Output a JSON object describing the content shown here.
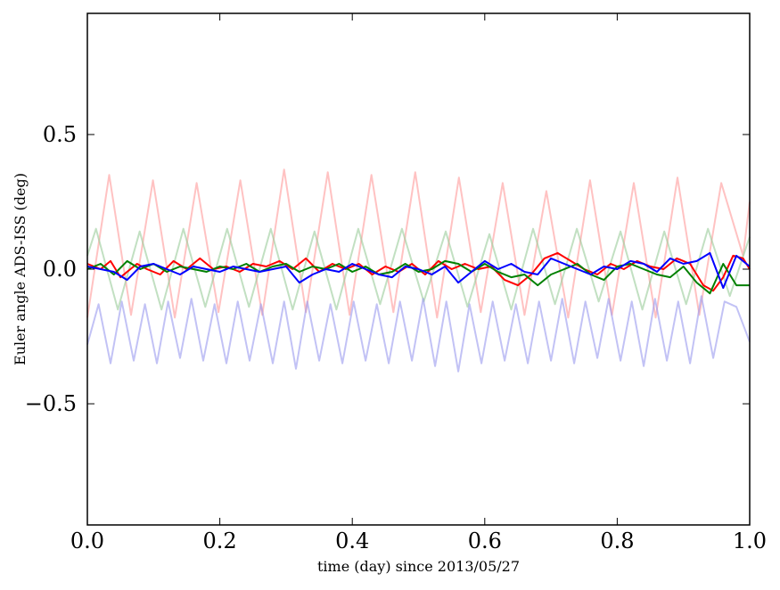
{
  "chart_data": {
    "type": "line",
    "title": "",
    "xlabel": "time (day) since 2013/05/27",
    "ylabel": "Euler angle ADS-ISS (deg)",
    "xlim": [
      0.0,
      1.0
    ],
    "ylim": [
      -0.95,
      0.95
    ],
    "xticks": [
      0.0,
      0.2,
      0.4,
      0.6,
      0.8,
      1.0
    ],
    "xtick_labels": [
      "0.0",
      "0.2",
      "0.4",
      "0.6",
      "0.8",
      "1.0"
    ],
    "yticks": [
      -0.5,
      0.0,
      0.5
    ],
    "ytick_labels": [
      "−0.5",
      "0.0",
      "0.5"
    ],
    "grid": false,
    "legend": "none",
    "series": [
      {
        "color": "#ff9999",
        "opacity": 0.6,
        "x": [
          0.0,
          0.033,
          0.066,
          0.099,
          0.132,
          0.165,
          0.198,
          0.231,
          0.264,
          0.297,
          0.33,
          0.363,
          0.396,
          0.429,
          0.462,
          0.495,
          0.528,
          0.561,
          0.594,
          0.627,
          0.66,
          0.693,
          0.726,
          0.759,
          0.792,
          0.825,
          0.858,
          0.891,
          0.924,
          0.957,
          0.99,
          1.0
        ],
        "values": [
          -0.18,
          0.35,
          -0.17,
          0.33,
          -0.18,
          0.32,
          -0.16,
          0.33,
          -0.17,
          0.37,
          -0.16,
          0.36,
          -0.17,
          0.35,
          -0.16,
          0.36,
          -0.18,
          0.34,
          -0.16,
          0.32,
          -0.17,
          0.29,
          -0.18,
          0.33,
          -0.17,
          0.32,
          -0.18,
          0.34,
          -0.17,
          0.32,
          0.05,
          0.25
        ]
      },
      {
        "color": "#99cc99",
        "opacity": 0.6,
        "x": [
          0.0,
          0.013,
          0.046,
          0.079,
          0.112,
          0.145,
          0.178,
          0.211,
          0.244,
          0.277,
          0.31,
          0.343,
          0.376,
          0.409,
          0.442,
          0.475,
          0.508,
          0.541,
          0.574,
          0.607,
          0.64,
          0.673,
          0.706,
          0.739,
          0.772,
          0.805,
          0.838,
          0.871,
          0.904,
          0.937,
          0.97,
          1.0
        ],
        "values": [
          0.05,
          0.15,
          -0.15,
          0.14,
          -0.15,
          0.15,
          -0.14,
          0.15,
          -0.14,
          0.15,
          -0.15,
          0.14,
          -0.15,
          0.15,
          -0.13,
          0.15,
          -0.12,
          0.14,
          -0.14,
          0.13,
          -0.15,
          0.15,
          -0.13,
          0.15,
          -0.12,
          0.14,
          -0.15,
          0.14,
          -0.13,
          0.15,
          -0.1,
          0.12
        ]
      },
      {
        "color": "#9999ee",
        "opacity": 0.6,
        "x": [
          0.0,
          0.017,
          0.035,
          0.052,
          0.07,
          0.087,
          0.105,
          0.122,
          0.14,
          0.157,
          0.175,
          0.192,
          0.21,
          0.227,
          0.245,
          0.262,
          0.28,
          0.297,
          0.315,
          0.332,
          0.35,
          0.367,
          0.385,
          0.402,
          0.42,
          0.437,
          0.455,
          0.472,
          0.49,
          0.507,
          0.525,
          0.542,
          0.56,
          0.577,
          0.595,
          0.612,
          0.63,
          0.647,
          0.665,
          0.682,
          0.7,
          0.717,
          0.735,
          0.752,
          0.77,
          0.787,
          0.805,
          0.822,
          0.84,
          0.857,
          0.875,
          0.892,
          0.91,
          0.927,
          0.945,
          0.962,
          0.98,
          1.0
        ],
        "values": [
          -0.28,
          -0.13,
          -0.35,
          -0.12,
          -0.34,
          -0.13,
          -0.35,
          -0.12,
          -0.33,
          -0.11,
          -0.34,
          -0.13,
          -0.35,
          -0.12,
          -0.34,
          -0.13,
          -0.35,
          -0.12,
          -0.37,
          -0.12,
          -0.34,
          -0.13,
          -0.35,
          -0.12,
          -0.34,
          -0.13,
          -0.35,
          -0.12,
          -0.34,
          -0.11,
          -0.36,
          -0.12,
          -0.38,
          -0.13,
          -0.35,
          -0.12,
          -0.34,
          -0.13,
          -0.35,
          -0.12,
          -0.34,
          -0.11,
          -0.35,
          -0.12,
          -0.33,
          -0.11,
          -0.34,
          -0.12,
          -0.36,
          -0.11,
          -0.34,
          -0.12,
          -0.35,
          -0.1,
          -0.33,
          -0.12,
          -0.14,
          -0.27
        ]
      },
      {
        "color": "#ff0000",
        "opacity": 1,
        "x": [
          0.0,
          0.02,
          0.035,
          0.05,
          0.06,
          0.075,
          0.09,
          0.11,
          0.13,
          0.15,
          0.17,
          0.19,
          0.21,
          0.23,
          0.25,
          0.27,
          0.29,
          0.31,
          0.33,
          0.35,
          0.37,
          0.39,
          0.41,
          0.43,
          0.45,
          0.47,
          0.49,
          0.51,
          0.53,
          0.55,
          0.57,
          0.59,
          0.61,
          0.63,
          0.65,
          0.67,
          0.69,
          0.71,
          0.73,
          0.75,
          0.77,
          0.79,
          0.81,
          0.83,
          0.85,
          0.87,
          0.89,
          0.91,
          0.93,
          0.945,
          0.96,
          0.975,
          0.99,
          1.0
        ],
        "values": [
          0.02,
          0.0,
          0.03,
          -0.03,
          -0.01,
          0.02,
          0.0,
          -0.02,
          0.03,
          0.0,
          0.04,
          0.0,
          0.01,
          -0.01,
          0.02,
          0.01,
          0.03,
          0.0,
          0.04,
          -0.01,
          0.02,
          0.0,
          0.02,
          -0.02,
          0.01,
          -0.01,
          0.02,
          -0.02,
          0.03,
          0.0,
          0.02,
          0.0,
          0.01,
          -0.04,
          -0.06,
          -0.02,
          0.04,
          0.06,
          0.03,
          0.0,
          -0.02,
          0.02,
          0.0,
          0.03,
          0.01,
          0.0,
          0.04,
          0.02,
          -0.06,
          -0.08,
          -0.03,
          0.05,
          0.04,
          0.0
        ]
      },
      {
        "color": "#008000",
        "opacity": 1,
        "x": [
          0.0,
          0.02,
          0.04,
          0.06,
          0.08,
          0.1,
          0.12,
          0.14,
          0.16,
          0.18,
          0.2,
          0.22,
          0.24,
          0.26,
          0.28,
          0.3,
          0.32,
          0.34,
          0.36,
          0.38,
          0.4,
          0.42,
          0.44,
          0.46,
          0.48,
          0.5,
          0.52,
          0.54,
          0.56,
          0.58,
          0.6,
          0.62,
          0.64,
          0.66,
          0.68,
          0.7,
          0.72,
          0.74,
          0.76,
          0.78,
          0.8,
          0.82,
          0.84,
          0.86,
          0.88,
          0.9,
          0.92,
          0.94,
          0.96,
          0.98,
          1.0
        ],
        "values": [
          0.0,
          0.02,
          -0.02,
          0.03,
          0.0,
          0.02,
          -0.01,
          0.01,
          0.0,
          -0.01,
          0.01,
          0.0,
          0.02,
          -0.01,
          0.01,
          0.02,
          -0.01,
          0.01,
          0.0,
          0.02,
          -0.01,
          0.01,
          -0.02,
          -0.01,
          0.02,
          -0.01,
          0.0,
          0.03,
          0.02,
          -0.01,
          0.02,
          -0.01,
          -0.03,
          -0.02,
          -0.06,
          -0.02,
          0.0,
          0.02,
          -0.02,
          -0.04,
          0.01,
          0.02,
          0.0,
          -0.02,
          -0.03,
          0.01,
          -0.05,
          -0.09,
          0.02,
          -0.06,
          -0.06
        ]
      },
      {
        "color": "#0000ff",
        "opacity": 1,
        "x": [
          0.0,
          0.02,
          0.04,
          0.06,
          0.08,
          0.1,
          0.12,
          0.14,
          0.16,
          0.18,
          0.2,
          0.22,
          0.24,
          0.26,
          0.28,
          0.3,
          0.32,
          0.34,
          0.36,
          0.38,
          0.4,
          0.42,
          0.44,
          0.46,
          0.48,
          0.5,
          0.52,
          0.54,
          0.56,
          0.58,
          0.6,
          0.62,
          0.64,
          0.66,
          0.68,
          0.7,
          0.72,
          0.74,
          0.76,
          0.78,
          0.8,
          0.82,
          0.84,
          0.86,
          0.88,
          0.9,
          0.92,
          0.94,
          0.96,
          0.98,
          1.0
        ],
        "values": [
          0.01,
          0.0,
          -0.01,
          -0.04,
          0.01,
          0.02,
          0.0,
          -0.02,
          0.01,
          0.0,
          -0.01,
          0.01,
          0.0,
          -0.01,
          0.0,
          0.01,
          -0.05,
          -0.02,
          0.0,
          -0.01,
          0.02,
          0.0,
          -0.02,
          -0.03,
          0.01,
          0.0,
          -0.02,
          0.01,
          -0.05,
          -0.01,
          0.03,
          0.0,
          0.02,
          -0.01,
          -0.02,
          0.04,
          0.02,
          0.0,
          -0.02,
          0.01,
          0.0,
          0.03,
          0.02,
          -0.01,
          0.04,
          0.02,
          0.03,
          0.06,
          -0.07,
          0.05,
          0.01
        ]
      }
    ]
  }
}
